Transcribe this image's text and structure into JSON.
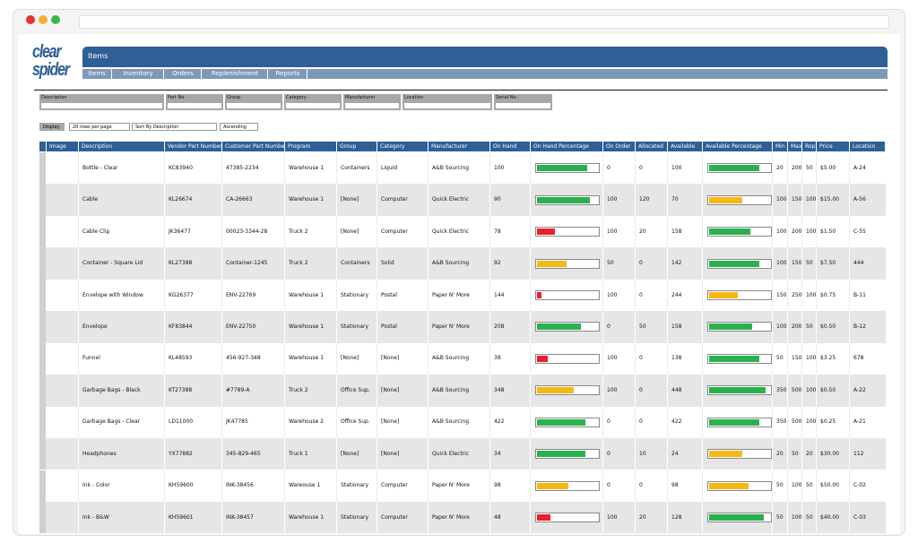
{
  "logo": [
    "clear",
    "spider"
  ],
  "header": {
    "title": "Items"
  },
  "nav": [
    "Items",
    "Inventory",
    "Orders",
    "Replenishment",
    "Reports"
  ],
  "filters": [
    "Description",
    "Part No.",
    "Group",
    "Category",
    "Manufacturer",
    "Location",
    "Serial No."
  ],
  "controls": {
    "button": "Display",
    "rows_per_page": "20 rows per page",
    "sort": "Sort By Description",
    "order": "Ascending"
  },
  "table": {
    "columns": [
      "Image",
      "Description",
      "Vendor Part Number",
      "Customer Part Number",
      "Program",
      "Group",
      "Category",
      "Manufacturer",
      "On Hand",
      "On Hand Percentage",
      "On Order",
      "Allocated",
      "Available",
      "Available Percentage",
      "Min",
      "Max",
      "Rop",
      "Price",
      "Location"
    ],
    "rows": [
      [
        "Bottle - Clear",
        "KC83940",
        "47385-2234",
        "Warehouse 1",
        "Containers",
        "Liquid",
        "A&B Sourcing",
        100,
        {
          "value": 82,
          "color": "#2bb04f"
        },
        0,
        0,
        100,
        {
          "value": 82,
          "color": "#2bb04f"
        },
        20,
        200,
        50,
        "$5.00",
        "A-24"
      ],
      [
        "Cable",
        "KL26674",
        "CA-26663",
        "Warehouse 1",
        "[None]",
        "Computer",
        "Quick Electric",
        90,
        {
          "value": 87,
          "color": "#2bb04f"
        },
        100,
        120,
        70,
        {
          "value": 55,
          "color": "#f5b914"
        },
        100,
        150,
        100,
        "$15.00",
        "A-56"
      ],
      [
        "Cable Clip",
        "JK36477",
        "00023-3344-28",
        "Truck 2",
        "[None]",
        "Computer",
        "Quick Electric",
        78,
        {
          "value": 30,
          "color": "#e8202a"
        },
        100,
        20,
        158,
        {
          "value": 68,
          "color": "#2bb04f"
        },
        100,
        200,
        100,
        "$1.50",
        "C-55"
      ],
      [
        "Container - Square Lid",
        "KL27388",
        "Container-1245",
        "Truck 2",
        "Containers",
        "Solid",
        "A&B Sourcing",
        92,
        {
          "value": 48,
          "color": "#f5b914"
        },
        50,
        0,
        142,
        {
          "value": 82,
          "color": "#2bb04f"
        },
        100,
        150,
        50,
        "$7.50",
        "444"
      ],
      [
        "Envelope with Window",
        "KG26377",
        "ENV-22769",
        "Warehouse 1",
        "Stationary",
        "Postal",
        "Paper N' More",
        144,
        {
          "value": 8,
          "color": "#e8202a"
        },
        100,
        0,
        244,
        {
          "value": 47,
          "color": "#f5b914"
        },
        150,
        250,
        100,
        "$0.75",
        "B-11"
      ],
      [
        "Envelope",
        "KF83844",
        "ENV-22750",
        "Warehouse 1",
        "Stationary",
        "Postal",
        "Paper N' More",
        208,
        {
          "value": 72,
          "color": "#2bb04f"
        },
        0,
        50,
        158,
        {
          "value": 70,
          "color": "#2bb04f"
        },
        100,
        200,
        50,
        "$0.50",
        "B-12"
      ],
      [
        "Funnel",
        "KL48593",
        "456-927-348",
        "Warehouse 1",
        "[None]",
        "[None]",
        "A&B Sourcing",
        38,
        {
          "value": 18,
          "color": "#e8202a"
        },
        100,
        0,
        138,
        {
          "value": 82,
          "color": "#2bb04f"
        },
        50,
        150,
        100,
        "$3.25",
        "678"
      ],
      [
        "Garbage Bags - Black",
        "KT27388",
        "#7789-A",
        "Truck 2",
        "Office Sup.",
        "[None]",
        "A&B Sourcing",
        348,
        {
          "value": 60,
          "color": "#f5b914"
        },
        100,
        0,
        448,
        {
          "value": 92,
          "color": "#2bb04f"
        },
        350,
        500,
        100,
        "$0.50",
        "A-22"
      ],
      [
        "Garbage Bags - Clear",
        "LD11000",
        "JK47785",
        "Warehouse 2",
        "Office Sup.",
        "[None]",
        "A&B Sourcing",
        422,
        {
          "value": 80,
          "color": "#2bb04f"
        },
        0,
        0,
        422,
        {
          "value": 82,
          "color": "#2bb04f"
        },
        350,
        500,
        100,
        "$0.25",
        "A-21"
      ],
      [
        "Headphones",
        "YX77882",
        "345-829-465",
        "Truck 1",
        "[None]",
        "[None]",
        "Quick Electric",
        34,
        {
          "value": 80,
          "color": "#2bb04f"
        },
        0,
        10,
        24,
        {
          "value": 55,
          "color": "#f5b914"
        },
        20,
        50,
        20,
        "$30.00",
        "112"
      ],
      [
        "Ink - Color",
        "KH59600",
        "INK-38456",
        "Wareouse 1",
        "Stationary",
        "Computer",
        "Paper N' More",
        98,
        {
          "value": 52,
          "color": "#f5b914"
        },
        0,
        0,
        98,
        {
          "value": 65,
          "color": "#f5b914"
        },
        50,
        100,
        50,
        "$50.00",
        "C-02"
      ],
      [
        "Ink - B&W",
        "KH59601",
        "INK-38457",
        "Warehouse 1",
        "Stationary",
        "Computer",
        "Paper N' More",
        48,
        {
          "value": 22,
          "color": "#e8202a"
        },
        100,
        20,
        128,
        {
          "value": 90,
          "color": "#2bb04f"
        },
        50,
        100,
        50,
        "$40.00",
        "C-03"
      ]
    ]
  }
}
